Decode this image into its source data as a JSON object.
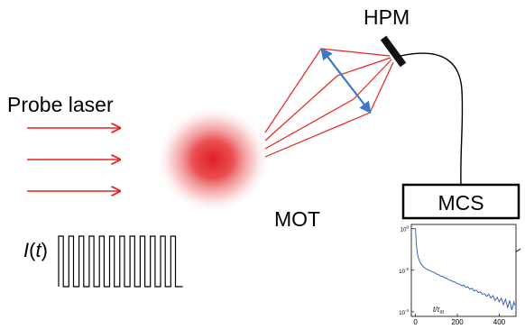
{
  "labels": {
    "probe_laser": "Probe laser",
    "hpm": "HPM",
    "mot": "MOT",
    "mcs": "MCS",
    "intensity_symbol": "I",
    "intensity_arg_open": "(",
    "intensity_arg": "t",
    "intensity_arg_close": ")"
  },
  "colors": {
    "laser": "#e8221f",
    "lens": "#3a78c8",
    "cloud": "#e52a2a",
    "ink": "#000000",
    "trace": "#2a55b0"
  },
  "pulse_train": {
    "pulse_count": 12
  },
  "chart_data": {
    "type": "line",
    "title": "",
    "xlabel": "t/τ_at",
    "xlabel_main": "t/τ",
    "xlabel_sub": "at",
    "ylabel": "",
    "y_scale": "log",
    "xlim": [
      -20,
      480
    ],
    "ylim": [
      6e-05,
      1.6
    ],
    "x_ticks": [
      "0",
      "200",
      "400"
    ],
    "x_tick_values": [
      0,
      200,
      400
    ],
    "y_ticks": [
      {
        "base": "10",
        "exp": "0",
        "value": 1
      },
      {
        "base": "10",
        "exp": "-2",
        "value": 0.01
      },
      {
        "base": "10",
        "exp": "-4",
        "value": 0.0001
      }
    ],
    "grid": false,
    "legend": "none",
    "series": [
      {
        "x": [
          -20,
          -15,
          -10,
          -5,
          0,
          2,
          4,
          6,
          8,
          10,
          14,
          18,
          22,
          26,
          30,
          40,
          50,
          60,
          70,
          80,
          90,
          100,
          110,
          120,
          130,
          140,
          150,
          160,
          170,
          180,
          190,
          200,
          210,
          220,
          230,
          240,
          250,
          260,
          270,
          280,
          290,
          300,
          310,
          320,
          330,
          340,
          350,
          360,
          370,
          380,
          390,
          400,
          410,
          420,
          430,
          440,
          450,
          460,
          470,
          475
        ],
        "y": [
          1.0,
          1.0,
          1.0,
          1.0,
          1.0,
          0.35,
          0.18,
          0.11,
          0.075,
          0.055,
          0.038,
          0.029,
          0.024,
          0.02,
          0.018,
          0.014,
          0.012,
          0.0105,
          0.0093,
          0.0085,
          0.0078,
          0.0066,
          0.0062,
          0.0052,
          0.005,
          0.0043,
          0.004,
          0.0034,
          0.0032,
          0.0028,
          0.0027,
          0.0022,
          0.0022,
          0.0018,
          0.0019,
          0.0015,
          0.0016,
          0.0012,
          0.00135,
          0.001,
          0.0011,
          0.00085,
          0.0009,
          0.0007,
          0.00075,
          0.00055,
          0.0007,
          0.00045,
          0.0006,
          0.00035,
          0.0005,
          0.0003,
          0.00045,
          0.00022,
          0.0004,
          0.00016,
          0.00035,
          0.00012,
          0.0003,
          0.0002
        ]
      }
    ]
  }
}
